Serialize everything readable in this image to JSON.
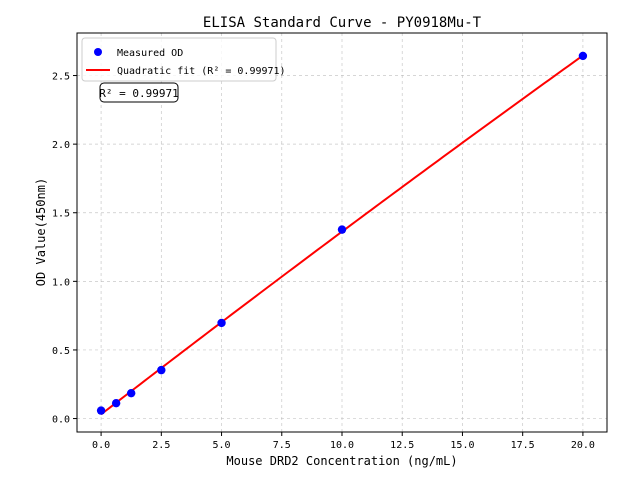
{
  "chart_data": {
    "type": "scatter",
    "title": "ELISA Standard Curve - PY0918Mu-T",
    "xlabel": "Mouse DRD2 Concentration (ng/mL)",
    "ylabel": "OD Value(450nm)",
    "xlim": [
      -1.0,
      21.0
    ],
    "ylim": [
      -0.098,
      2.81
    ],
    "xticks": [
      0.0,
      2.5,
      5.0,
      7.5,
      10.0,
      12.5,
      15.0,
      17.5,
      20.0
    ],
    "xtick_labels": [
      "0.0",
      "2.5",
      "5.0",
      "7.5",
      "10.0",
      "12.5",
      "15.0",
      "17.5",
      "20.0"
    ],
    "yticks": [
      0.0,
      0.5,
      1.0,
      1.5,
      2.0,
      2.5
    ],
    "ytick_labels": [
      "0.0",
      "0.5",
      "1.0",
      "1.5",
      "2.0",
      "2.5"
    ],
    "grid": true,
    "legend_position": "top-left",
    "series": [
      {
        "name": "Measured OD",
        "kind": "scatter",
        "color": "#0000ff",
        "x": [
          0,
          0.625,
          1.25,
          2.5,
          5,
          10,
          20
        ],
        "y": [
          0.058,
          0.112,
          0.185,
          0.353,
          0.697,
          1.377,
          2.643
        ]
      },
      {
        "name": "Quadratic fit (R² = 0.99971)",
        "kind": "line",
        "color": "#ff0000",
        "x_range": [
          0,
          20
        ]
      }
    ],
    "annotation": "R² = 0.99971"
  }
}
